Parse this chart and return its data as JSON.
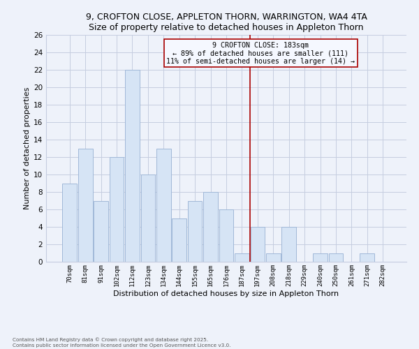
{
  "title1": "9, CROFTON CLOSE, APPLETON THORN, WARRINGTON, WA4 4TA",
  "title2": "Size of property relative to detached houses in Appleton Thorn",
  "xlabel": "Distribution of detached houses by size in Appleton Thorn",
  "ylabel": "Number of detached properties",
  "bar_labels": [
    "70sqm",
    "81sqm",
    "91sqm",
    "102sqm",
    "112sqm",
    "123sqm",
    "134sqm",
    "144sqm",
    "155sqm",
    "165sqm",
    "176sqm",
    "187sqm",
    "197sqm",
    "208sqm",
    "218sqm",
    "229sqm",
    "240sqm",
    "250sqm",
    "261sqm",
    "271sqm",
    "282sqm"
  ],
  "bar_values": [
    9,
    13,
    7,
    12,
    22,
    10,
    13,
    5,
    7,
    8,
    6,
    1,
    4,
    1,
    4,
    0,
    1,
    1,
    0,
    1,
    0
  ],
  "bar_color": "#d6e4f5",
  "bar_edge_color": "#a0b8d8",
  "vline_x": 11.5,
  "vline_color": "#aa0000",
  "annotation_title": "9 CROFTON CLOSE: 183sqm",
  "annotation_line1": "← 89% of detached houses are smaller (111)",
  "annotation_line2": "11% of semi-detached houses are larger (14) →",
  "annotation_box_color": "#f5f8ff",
  "annotation_box_edge": "#aa0000",
  "ylim": [
    0,
    26
  ],
  "yticks": [
    0,
    2,
    4,
    6,
    8,
    10,
    12,
    14,
    16,
    18,
    20,
    22,
    24,
    26
  ],
  "footer1": "Contains HM Land Registry data © Crown copyright and database right 2025.",
  "footer2": "Contains public sector information licensed under the Open Government Licence v3.0.",
  "bg_color": "#eef2fa",
  "grid_color": "#c5cde0"
}
